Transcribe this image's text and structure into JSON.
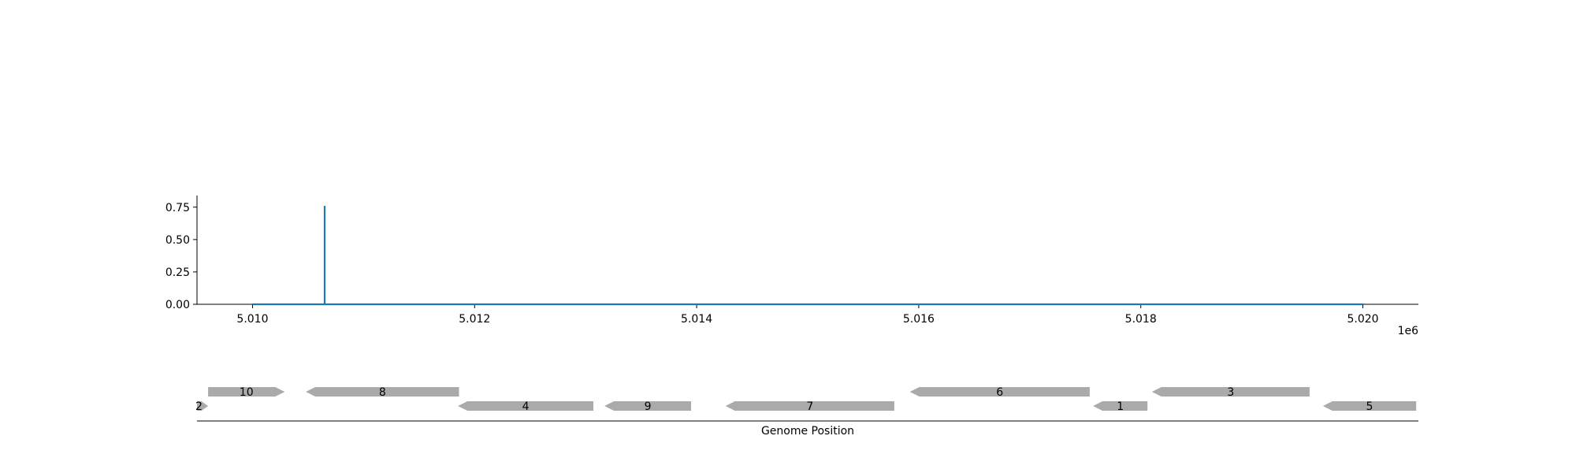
{
  "chart_data": [
    {
      "type": "line",
      "title": "",
      "xlabel": "",
      "ylabel": "",
      "xlim": [
        5009500,
        5020500
      ],
      "ylim": [
        0,
        0.84
      ],
      "x_ticks": [
        5010000,
        5012000,
        5014000,
        5016000,
        5018000,
        5020000
      ],
      "x_tick_labels": [
        "5.010",
        "5.012",
        "5.014",
        "5.016",
        "5.018",
        "5.020"
      ],
      "x_offset_label": "1e6",
      "y_ticks": [
        0,
        0.25,
        0.5,
        0.75
      ],
      "y_tick_labels": [
        "0.00",
        "0.25",
        "0.50",
        "0.75"
      ],
      "grid": false,
      "series": [
        {
          "color": "#1f77b4",
          "x": [
            5010000,
            5010650,
            5010650,
            5010650,
            5020000
          ],
          "y": [
            0,
            0,
            0.76,
            0,
            0
          ]
        }
      ]
    },
    {
      "type": "gene_track",
      "xlabel": "Genome Position",
      "xlim": [
        5009500,
        5020500
      ],
      "color": "#aaaaaa",
      "genes": [
        {
          "label": "10",
          "start": 5009600,
          "end": 5010290,
          "strand": "+",
          "row": 0
        },
        {
          "label": "8",
          "start": 5010480,
          "end": 5011860,
          "strand": "-",
          "row": 0
        },
        {
          "label": "6",
          "start": 5015920,
          "end": 5017540,
          "strand": "-",
          "row": 0
        },
        {
          "label": "3",
          "start": 5018100,
          "end": 5019520,
          "strand": "-",
          "row": 0
        },
        {
          "label": "2",
          "start": 5009500,
          "end": 5009600,
          "strand": "+",
          "row": 1
        },
        {
          "label": "4",
          "start": 5011850,
          "end": 5013070,
          "strand": "-",
          "row": 1
        },
        {
          "label": "9",
          "start": 5013170,
          "end": 5013950,
          "strand": "-",
          "row": 1
        },
        {
          "label": "7",
          "start": 5014260,
          "end": 5015780,
          "strand": "-",
          "row": 1
        },
        {
          "label": "1",
          "start": 5017570,
          "end": 5018060,
          "strand": "-",
          "row": 1
        },
        {
          "label": "5",
          "start": 5019640,
          "end": 5020480,
          "strand": "-",
          "row": 1
        }
      ]
    }
  ]
}
